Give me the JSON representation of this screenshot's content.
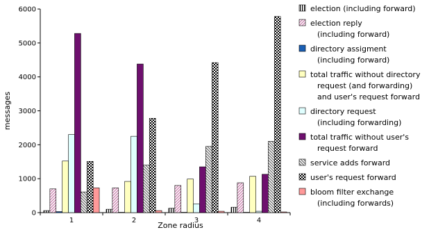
{
  "chart_data": {
    "type": "bar",
    "title": "",
    "xlabel": "Zone radius",
    "ylabel": "messages",
    "categories": [
      "1",
      "2",
      "3",
      "4"
    ],
    "ylim": [
      0,
      6000
    ],
    "yticks": [
      "0",
      "1000",
      "2000",
      "3000",
      "4000",
      "5000",
      "6000"
    ],
    "grid": false,
    "legend_position": "right",
    "series": [
      {
        "name": "election (including forward)",
        "legend_lines": [
          "election (including forward)"
        ],
        "pattern": "vlines",
        "color": "#000000",
        "values": [
          60,
          100,
          130,
          160
        ]
      },
      {
        "name": "election reply (including forward)",
        "legend_lines": [
          "election reply",
          "(including forward)"
        ],
        "pattern": "pink-diag",
        "color": "#c878a8",
        "values": [
          700,
          730,
          800,
          880
        ]
      },
      {
        "name": "directory assigment (including forward)",
        "legend_lines": [
          "directory assigment",
          "(including forward)"
        ],
        "pattern": "solid-blue",
        "color": "#1a5fb4",
        "values": [
          30,
          10,
          10,
          10
        ]
      },
      {
        "name": "total traffic without directory request (and forwarding) and user's request forward",
        "legend_lines": [
          "total traffic without directory",
          "request (and forwarding)",
          "and user's request forward"
        ],
        "pattern": "solid-yellow",
        "color": "#ffffc0",
        "values": [
          1520,
          920,
          990,
          1070
        ]
      },
      {
        "name": "directory request (including forwarding)",
        "legend_lines": [
          "directory request",
          "(including forwarding)"
        ],
        "pattern": "solid-cyan",
        "color": "#e0ffff",
        "values": [
          2300,
          2250,
          260,
          40
        ]
      },
      {
        "name": "total traffic without user's request forward",
        "legend_lines": [
          "total traffic without user's",
          "request forward"
        ],
        "pattern": "solid-purple",
        "color": "#6e0f6e",
        "values": [
          5280,
          4380,
          1350,
          1130
        ]
      },
      {
        "name": "service adds forward",
        "legend_lines": [
          "service adds forward"
        ],
        "pattern": "gray-diag",
        "color": "#808080",
        "values": [
          610,
          1400,
          1950,
          2100
        ]
      },
      {
        "name": "user's request forward",
        "legend_lines": [
          "user's request forward"
        ],
        "pattern": "checker",
        "color": "#000000",
        "values": [
          1510,
          2780,
          4420,
          5780
        ]
      },
      {
        "name": "bloom filter exchange (including forwards)",
        "legend_lines": [
          "bloom filter exchange",
          "(including forwards)"
        ],
        "pattern": "solid-salmon",
        "color": "#ff9999",
        "values": [
          730,
          60,
          40,
          20
        ]
      }
    ]
  }
}
